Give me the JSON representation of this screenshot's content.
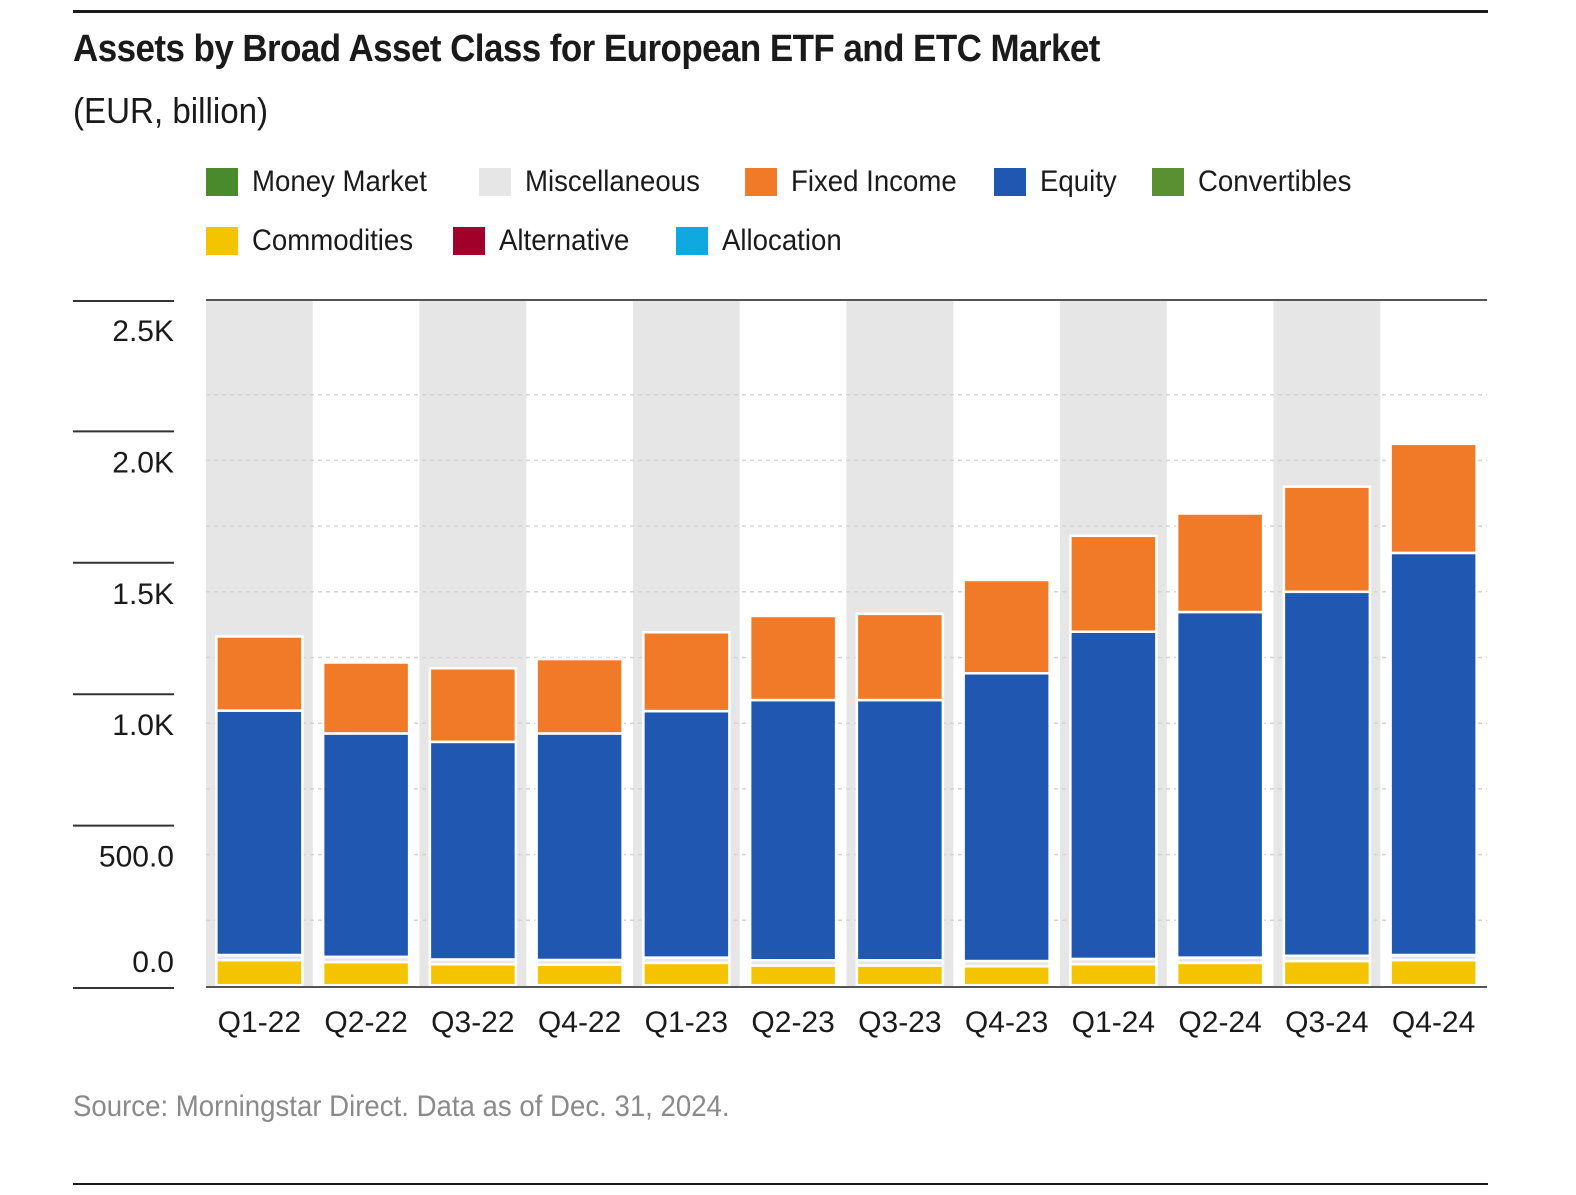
{
  "chart_data": {
    "type": "bar",
    "stacked": true,
    "title": "Assets by Broad Asset Class for European ETF and ETC Market",
    "subtitle": "(EUR, billion)",
    "categories": [
      "Q1-22",
      "Q2-22",
      "Q3-22",
      "Q4-22",
      "Q1-23",
      "Q2-23",
      "Q3-23",
      "Q4-23",
      "Q1-24",
      "Q2-24",
      "Q3-24",
      "Q4-24"
    ],
    "ylim": [
      0,
      2500
    ],
    "yticks": [
      0,
      500,
      1000,
      1500,
      2000,
      2500
    ],
    "ytick_labels": [
      "0.0",
      "500.0",
      "1.0K",
      "1.5K",
      "2.0K",
      "2.5K"
    ],
    "legend": [
      {
        "name": "Money Market",
        "color": "#4a8a2c"
      },
      {
        "name": "Miscellaneous",
        "color": "#e6e6e6"
      },
      {
        "name": "Fixed Income",
        "color": "#f07a28"
      },
      {
        "name": "Equity",
        "color": "#2057b0"
      },
      {
        "name": "Convertibles",
        "color": "#5a8f32"
      },
      {
        "name": "Commodities",
        "color": "#f5c400"
      },
      {
        "name": "Alternative",
        "color": "#a0002a"
      },
      {
        "name": "Allocation",
        "color": "#0fa8e0"
      }
    ],
    "series": [
      {
        "name": "Money Market",
        "color": "#4a8a2c",
        "values": [
          3,
          3,
          3,
          3,
          3,
          3,
          3,
          3,
          3,
          3,
          3,
          3
        ]
      },
      {
        "name": "Commodities",
        "color": "#f5c400",
        "values": [
          95,
          88,
          80,
          78,
          85,
          75,
          75,
          72,
          80,
          85,
          92,
          95
        ]
      },
      {
        "name": "Miscellaneous",
        "color": "#e6e6e6",
        "values": [
          20,
          20,
          18,
          18,
          20,
          20,
          20,
          20,
          20,
          20,
          20,
          20
        ]
      },
      {
        "name": "Equity",
        "color": "#2057b0",
        "values": [
          930,
          850,
          828,
          862,
          938,
          990,
          990,
          1095,
          1245,
          1315,
          1385,
          1530
        ]
      },
      {
        "name": "Fixed Income",
        "color": "#f07a28",
        "values": [
          282,
          270,
          280,
          283,
          300,
          320,
          328,
          355,
          365,
          375,
          400,
          415
        ]
      }
    ],
    "source": "Source: Morningstar Direct. Data as of Dec. 31, 2024."
  }
}
